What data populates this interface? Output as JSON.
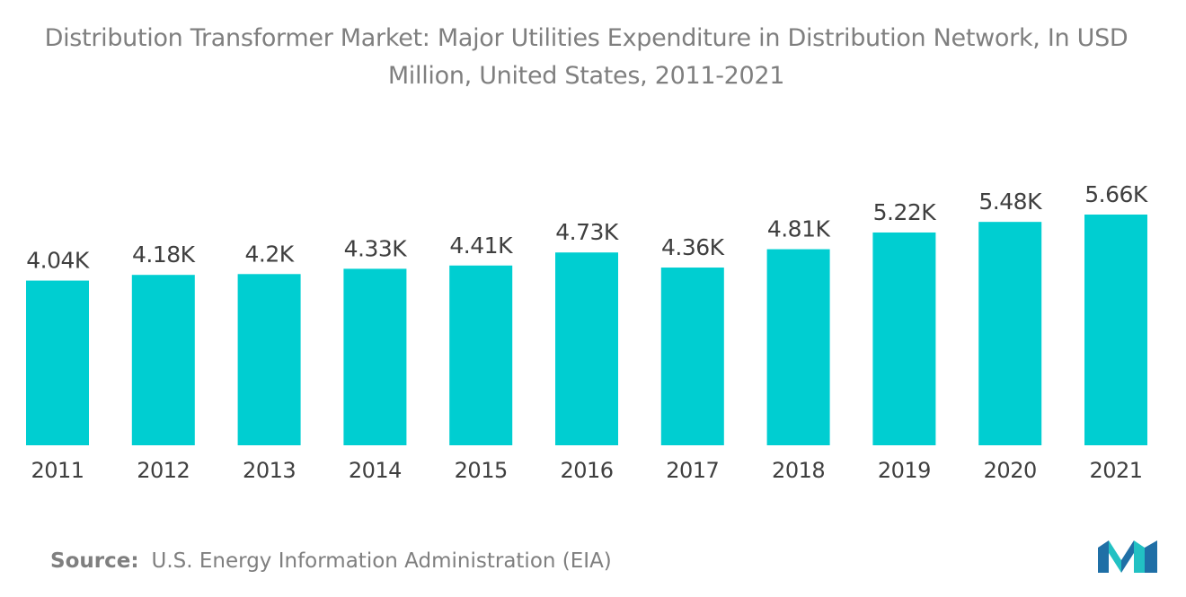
{
  "title": "Distribution Transformer Market: Major Utilities Expenditure in Distribution Network, In USD Million, United States, 2011-2021",
  "source": {
    "label": "Source:",
    "text": "U.S. Energy Information Administration (EIA)"
  },
  "logo": {
    "icon": "mordor-intelligence-logo",
    "colors": [
      "#1f6fa6",
      "#22c1c3"
    ]
  },
  "chart_data": {
    "type": "bar",
    "categories": [
      "2011",
      "2012",
      "2013",
      "2014",
      "2015",
      "2016",
      "2017",
      "2018",
      "2019",
      "2020",
      "2021"
    ],
    "values": [
      4040,
      4180,
      4200,
      4330,
      4410,
      4730,
      4360,
      4810,
      5220,
      5480,
      5660
    ],
    "data_labels": [
      "4.04K",
      "4.18K",
      "4.2K",
      "4.33K",
      "4.41K",
      "4.73K",
      "4.36K",
      "4.81K",
      "5.22K",
      "5.48K",
      "5.66K"
    ],
    "bar_color": "#00ced1",
    "ylim": [
      0,
      5660
    ],
    "grid": false,
    "legend": "none",
    "xlabel": "",
    "ylabel": ""
  }
}
